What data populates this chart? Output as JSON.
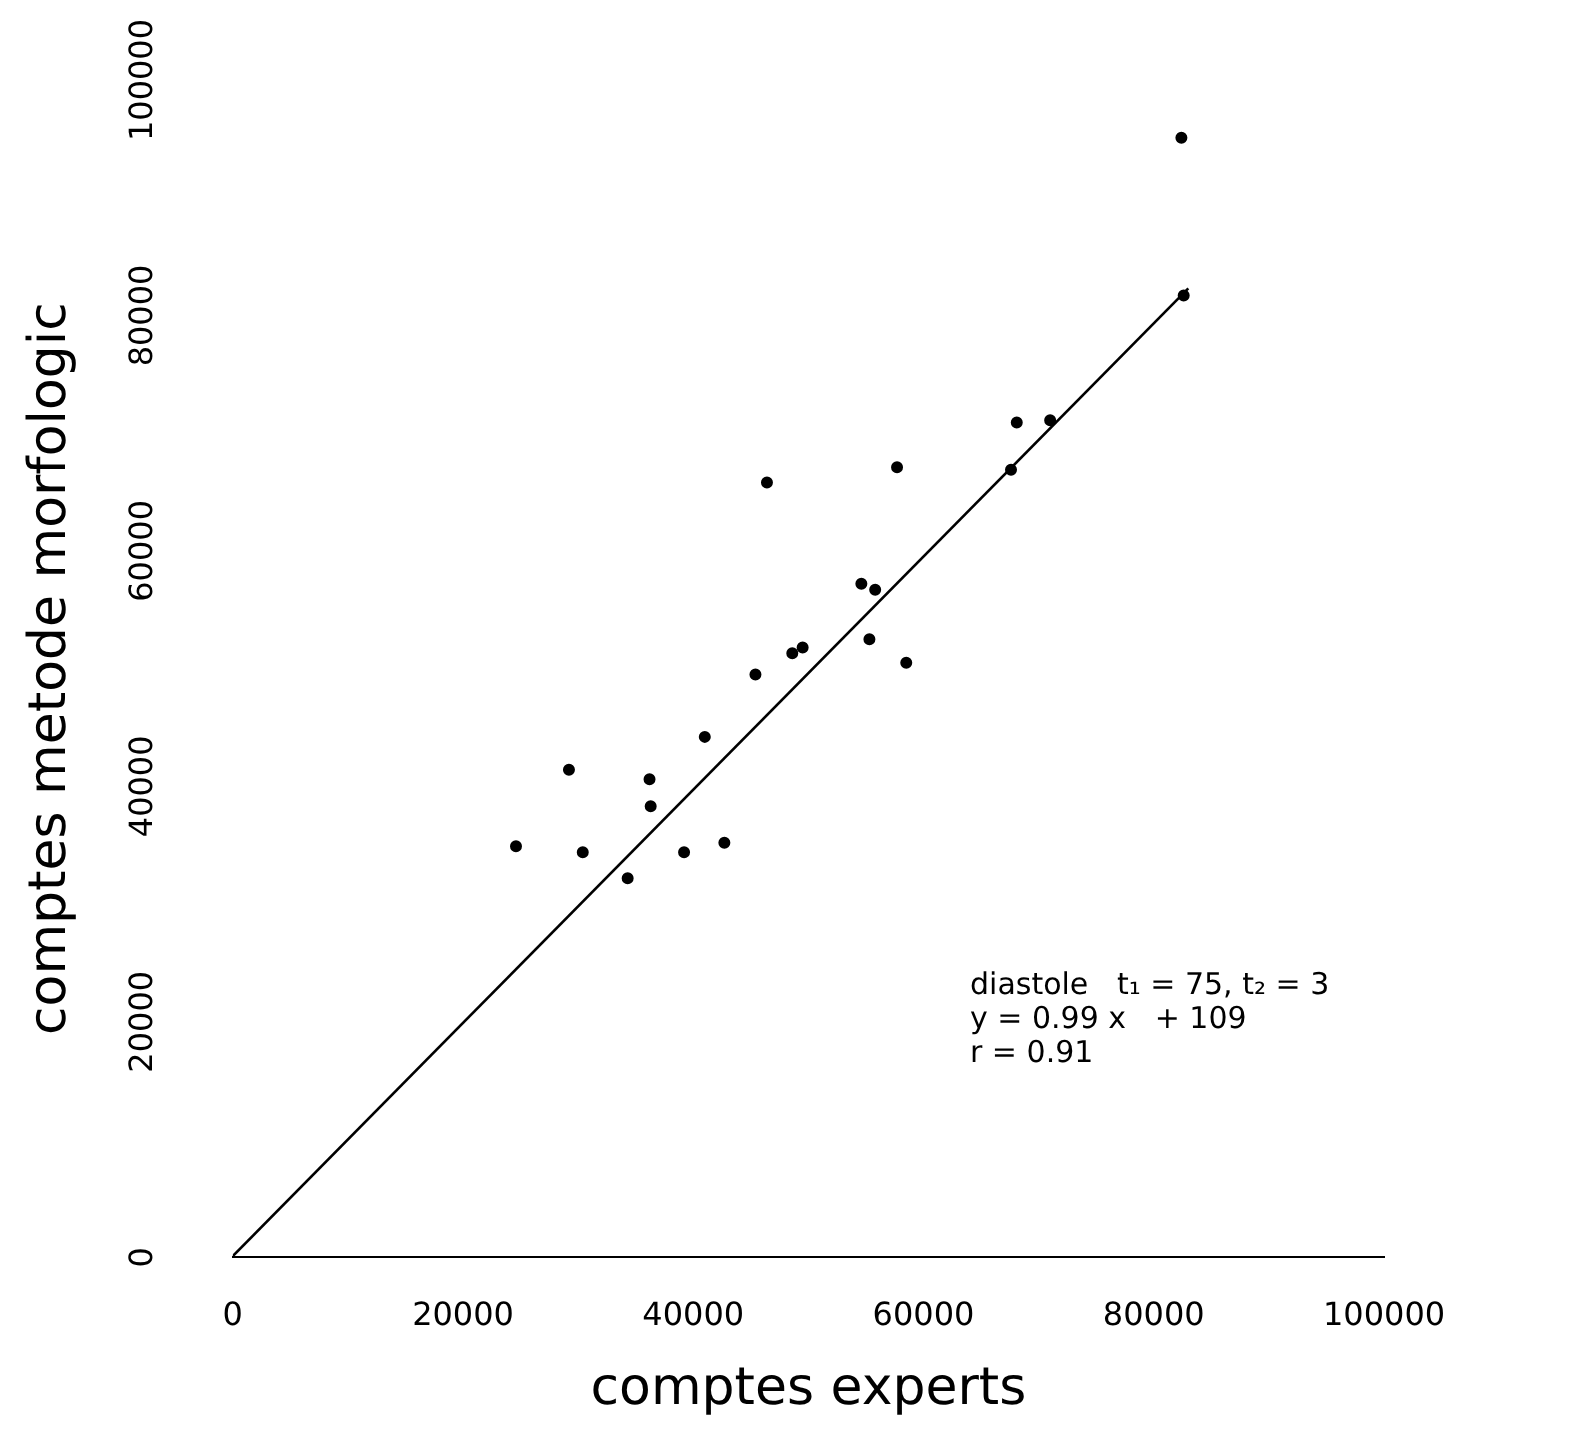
{
  "chart_data": {
    "type": "scatter",
    "xlabel": "comptes experts",
    "ylabel": "comptes metode morfologic",
    "xlim": [
      0,
      100000
    ],
    "ylim": [
      0,
      100000
    ],
    "xticks": [
      0,
      20000,
      40000,
      60000,
      80000,
      100000
    ],
    "yticks": [
      0,
      20000,
      40000,
      60000,
      80000,
      100000
    ],
    "grid": false,
    "legend": false,
    "marker": "circle",
    "annotations": [
      "diastole   t₁ = 75, t₂ = 3",
      "y = 0.99 x   + 109",
      "r = 0.91"
    ],
    "series": [
      {
        "color": "#000000",
        "x": [
          24600,
          29200,
          30400,
          34300,
          36200,
          36300,
          39200,
          41000,
          42700,
          45400,
          46400,
          48600,
          49500,
          54600,
          55300,
          55800,
          58500,
          57700,
          67600,
          68100,
          71000,
          82400,
          82600
        ],
        "values": [
          34900,
          41400,
          34400,
          32200,
          40600,
          38300,
          34400,
          44200,
          35200,
          49500,
          65800,
          51300,
          51800,
          57200,
          52500,
          56700,
          50500,
          67100,
          66900,
          70900,
          71100,
          95100,
          81700
        ]
      },
      {
        "type": "line",
        "color": "#000000",
        "line_style": "solid",
        "marker": "none",
        "x": [
          0,
          83000
        ],
        "values": [
          100,
          82300
        ]
      }
    ]
  }
}
